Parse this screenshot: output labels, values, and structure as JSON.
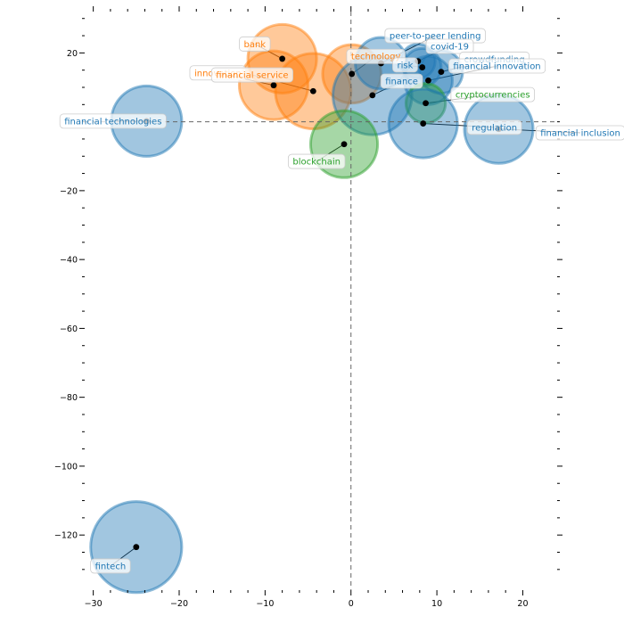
{
  "chart_data": {
    "type": "scatter",
    "title": "",
    "xlabel": "",
    "ylabel": "",
    "xlim": [
      -31,
      24
    ],
    "ylim": [
      -136,
      32
    ],
    "x_ticks": [
      -30,
      -20,
      -10,
      0,
      10,
      20
    ],
    "y_ticks": [
      20,
      -20,
      -40,
      -60,
      -80,
      -100,
      -120
    ],
    "x_tick_labels": [
      "−30",
      "−20",
      "−10",
      "0",
      "10",
      "20"
    ],
    "y_tick_labels": [
      "20",
      "−20",
      "−40",
      "−60",
      "−80",
      "−100",
      "−120"
    ],
    "reference_lines": {
      "x": 0,
      "y": 0
    },
    "grid": false,
    "colors": {
      "blue": "#1f77b4",
      "orange": "#ff7f0e",
      "green": "#2ca02c"
    },
    "points": [
      {
        "label": "bank",
        "x": -8.0,
        "y": 18.3,
        "size": 4.0,
        "color": "orange",
        "label_x": -11.2,
        "label_y": 22.6
      },
      {
        "label": "innovation",
        "x": -9.0,
        "y": 10.6,
        "size": 4.0,
        "color": "orange",
        "label_x": -15.5,
        "label_y": 14.2
      },
      {
        "label": "financial service",
        "x": -4.4,
        "y": 8.9,
        "size": 4.4,
        "color": "orange",
        "label_x": -11.5,
        "label_y": 13.6
      },
      {
        "label": "technology",
        "x": 0.1,
        "y": 13.9,
        "size": 3.4,
        "color": "orange",
        "label_x": 2.9,
        "label_y": 19.0
      },
      {
        "label": "peer-to-peer lending",
        "x": 3.5,
        "y": 17.0,
        "size": 3.0,
        "color": "blue",
        "label_x": 9.8,
        "label_y": 25.0
      },
      {
        "label": "covid-19",
        "x": 7.8,
        "y": 17.6,
        "size": 2.0,
        "color": "blue",
        "label_x": 11.5,
        "label_y": 21.9
      },
      {
        "label": "crowdfunding",
        "x": 10.5,
        "y": 14.5,
        "size": 2.5,
        "color": "blue",
        "label_x": 16.7,
        "label_y": 18.2
      },
      {
        "label": "risk",
        "x": 8.3,
        "y": 15.8,
        "size": 2.2,
        "color": "blue",
        "label_x": 6.3,
        "label_y": 16.5
      },
      {
        "label": "financial innovation",
        "x": 9.0,
        "y": 12.0,
        "size": 2.8,
        "color": "blue",
        "label_x": 17.0,
        "label_y": 16.2
      },
      {
        "label": "finance",
        "x": 2.5,
        "y": 7.7,
        "size": 4.6,
        "color": "blue",
        "label_x": 5.9,
        "label_y": 11.8
      },
      {
        "label": "cryptocurrencies",
        "x": 8.7,
        "y": 5.4,
        "size": 2.3,
        "color": "green",
        "label_x": 16.5,
        "label_y": 7.9
      },
      {
        "label": "financial technologies",
        "x": -23.8,
        "y": 0.2,
        "size": 4.1,
        "color": "blue",
        "label_x": -27.7,
        "label_y": 0.2
      },
      {
        "label": "regulation",
        "x": 8.4,
        "y": -0.5,
        "size": 4.0,
        "color": "blue",
        "label_x": 16.7,
        "label_y": -1.6
      },
      {
        "label": "financial inclusion",
        "x": 17.2,
        "y": -2.1,
        "size": 4.0,
        "color": "blue",
        "label_x": 26.7,
        "label_y": -3.2
      },
      {
        "label": "blockchain",
        "x": -0.8,
        "y": -6.5,
        "size": 3.9,
        "color": "green",
        "label_x": -4.0,
        "label_y": -11.5
      },
      {
        "label": "fintech",
        "x": -25.0,
        "y": -123.5,
        "size": 5.3,
        "color": "blue",
        "label_x": -28.0,
        "label_y": -129.0
      }
    ]
  }
}
